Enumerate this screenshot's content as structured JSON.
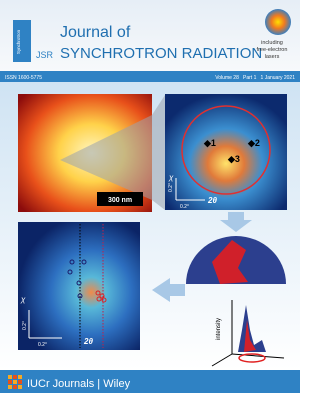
{
  "header": {
    "side_label": "Synchrotron",
    "logo": "JSR",
    "title_line1": "Journal of",
    "title_line2": "SYNCHROTRON RADIATION",
    "tagline_line1": "including",
    "tagline_line2": "free-electron",
    "tagline_line3": "lasers"
  },
  "bar": {
    "issn": "ISSN 1600-5775",
    "issue": "Volume 28   Part 1   1 January 2021"
  },
  "figure": {
    "scale_bar": "300 nm",
    "markers": [
      "◆1",
      "◆2",
      "◆3"
    ],
    "axis_chi": "χ",
    "axis_2theta": "2θ",
    "tick": "0.2°",
    "intensity_label": "intensity"
  },
  "footer": {
    "publisher": "IUCr Journals | Wiley"
  }
}
